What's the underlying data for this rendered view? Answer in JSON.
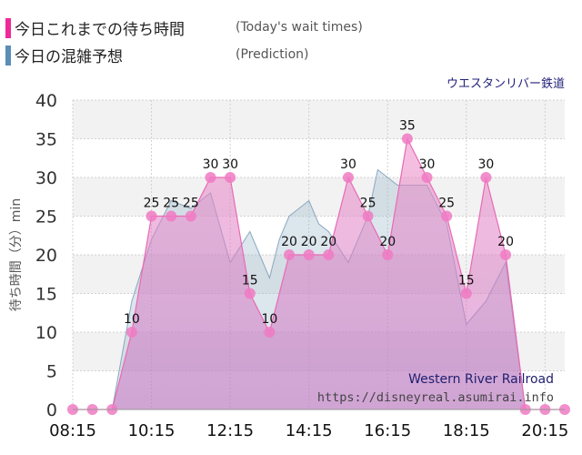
{
  "legend": {
    "actual_label": "今日これまでの待ち時間",
    "actual_en": "(Today's wait times)",
    "prediction_label": "今日の混雑予想",
    "prediction_en": "(Prediction)",
    "actual_color": "#ee2a98",
    "prediction_color": "#5b8db6"
  },
  "attraction": "ウエスタンリバー鉄道",
  "watermark": {
    "attraction_en": "Western River Railroad",
    "site": "https://disneyreal.asumirai.info"
  },
  "chart_data": {
    "type": "area",
    "ylabel": "待ち時間（分）min",
    "ylim": [
      0,
      40
    ],
    "yticks": [
      0,
      5,
      10,
      15,
      20,
      25,
      30,
      35,
      40
    ],
    "xticks": [
      "08:15",
      "10:15",
      "12:15",
      "14:15",
      "16:15",
      "18:15",
      "20:15"
    ],
    "grid": true,
    "series": [
      {
        "name": "今日これまでの待ち時間",
        "color": "#ee2a98",
        "x": [
          "08:15",
          "08:45",
          "09:15",
          "09:45",
          "10:15",
          "10:45",
          "11:15",
          "11:45",
          "12:15",
          "12:45",
          "13:15",
          "13:45",
          "14:15",
          "14:45",
          "15:15",
          "15:45",
          "16:15",
          "16:45",
          "17:15",
          "17:45",
          "18:15",
          "18:45",
          "19:15",
          "19:45",
          "20:15",
          "20:45"
        ],
        "values": [
          0,
          0,
          0,
          10,
          25,
          25,
          25,
          30,
          30,
          15,
          10,
          20,
          20,
          20,
          30,
          25,
          20,
          35,
          30,
          25,
          15,
          30,
          20,
          0,
          0,
          0
        ]
      },
      {
        "name": "今日の混雑予想",
        "color": "#5b8db6",
        "x": [
          "08:15",
          "08:45",
          "09:15",
          "09:45",
          "10:15",
          "10:45",
          "11:15",
          "11:45",
          "12:15",
          "12:45",
          "13:15",
          "13:30",
          "13:45",
          "14:15",
          "14:30",
          "14:45",
          "15:15",
          "15:45",
          "16:00",
          "16:15",
          "16:30",
          "16:45",
          "17:15",
          "17:45",
          "18:15",
          "18:45",
          "19:15",
          "19:45",
          "20:15",
          "20:45"
        ],
        "values": [
          0,
          0,
          0,
          14,
          22,
          27,
          26,
          28,
          19,
          23,
          17,
          22,
          25,
          27,
          24,
          23,
          19,
          25,
          31,
          30,
          29,
          29,
          29,
          24,
          11,
          14,
          19,
          0,
          0,
          0
        ]
      }
    ]
  }
}
